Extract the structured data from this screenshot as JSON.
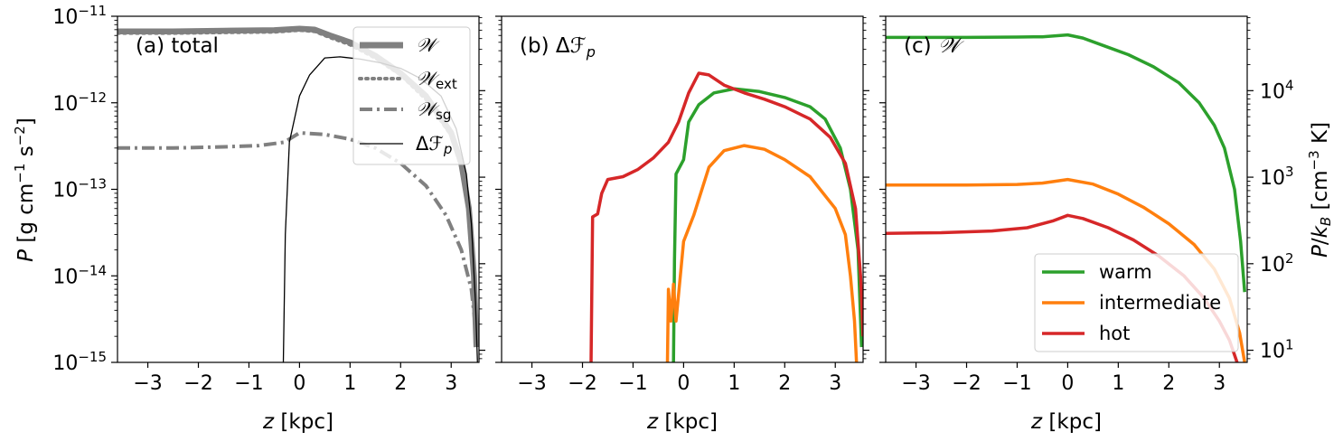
{
  "chart_data": [
    {
      "type": "line",
      "panel": "a",
      "title": "(a) total",
      "xlabel": "z [kpc]",
      "ylabel": "P [g cm⁻¹ s⁻²]",
      "yscale": "log",
      "xlim": [
        -3.6,
        3.55
      ],
      "ylim": [
        1e-15,
        1e-11
      ],
      "xticks": [
        -3,
        -2,
        -1,
        0,
        1,
        2,
        3
      ],
      "xtick_labels": [
        "−3",
        "−2",
        "−1",
        "0",
        "1",
        "2",
        "3"
      ],
      "yticks": [
        1e-15,
        1e-14,
        1e-13,
        1e-12,
        1e-11
      ],
      "ytick_labels": [
        {
          "base": "10",
          "exp": "−15"
        },
        {
          "base": "10",
          "exp": "−14"
        },
        {
          "base": "10",
          "exp": "−13"
        },
        {
          "base": "10",
          "exp": "−12"
        },
        {
          "base": "10",
          "exp": "−11"
        }
      ],
      "legend_position": "upper right",
      "series": [
        {
          "name": "𝒲",
          "color": "#808080",
          "style": "solid-thick",
          "points": [
            [
              -3.6,
              6.7e-12
            ],
            [
              -2.5,
              6.7e-12
            ],
            [
              -1.5,
              6.8e-12
            ],
            [
              -0.5,
              6.9e-12
            ],
            [
              0,
              7.2e-12
            ],
            [
              0.3,
              7e-12
            ],
            [
              0.6,
              6e-12
            ],
            [
              1.0,
              5e-12
            ],
            [
              1.5,
              3.5e-12
            ],
            [
              2.0,
              2.2e-12
            ],
            [
              2.5,
              1.2e-12
            ],
            [
              3.0,
              4.5e-13
            ],
            [
              3.2,
              2e-13
            ],
            [
              3.35,
              6e-14
            ],
            [
              3.45,
              1e-14
            ],
            [
              3.5,
              1.5e-15
            ]
          ]
        },
        {
          "name": "𝒲ext",
          "color": "#808080",
          "style": "dotted",
          "points": [
            [
              -3.6,
              6.4e-12
            ],
            [
              -2.5,
              6.4e-12
            ],
            [
              -1.5,
              6.5e-12
            ],
            [
              -0.5,
              6.6e-12
            ],
            [
              0,
              6.9e-12
            ],
            [
              0.3,
              6.7e-12
            ],
            [
              0.6,
              5.7e-12
            ],
            [
              1.0,
              4.7e-12
            ],
            [
              1.5,
              3.3e-12
            ],
            [
              2.0,
              2.1e-12
            ],
            [
              2.5,
              1.1e-12
            ],
            [
              3.0,
              4.2e-13
            ],
            [
              3.2,
              1.8e-13
            ],
            [
              3.35,
              5.5e-14
            ],
            [
              3.45,
              9e-15
            ],
            [
              3.5,
              1.5e-15
            ]
          ]
        },
        {
          "name": "𝒲sg",
          "color": "#808080",
          "style": "dashdot",
          "points": [
            [
              -3.6,
              3e-13
            ],
            [
              -2.5,
              3e-13
            ],
            [
              -1.5,
              3.1e-13
            ],
            [
              -0.8,
              3.2e-13
            ],
            [
              -0.3,
              3.5e-13
            ],
            [
              0,
              4.5e-13
            ],
            [
              0.5,
              4.3e-13
            ],
            [
              1.0,
              3.8e-13
            ],
            [
              1.5,
              3e-13
            ],
            [
              2.0,
              2e-13
            ],
            [
              2.5,
              1.1e-13
            ],
            [
              2.9,
              5e-14
            ],
            [
              3.2,
              2e-14
            ],
            [
              3.4,
              7e-15
            ],
            [
              3.5,
              2e-15
            ]
          ]
        },
        {
          "name": "Δℱp",
          "color": "#000000",
          "style": "solid-thin",
          "points": [
            [
              -0.32,
              1e-15
            ],
            [
              -0.28,
              3e-14
            ],
            [
              -0.2,
              3.5e-13
            ],
            [
              0,
              1.2e-12
            ],
            [
              0.2,
              2.1e-12
            ],
            [
              0.5,
              3.3e-12
            ],
            [
              0.8,
              3.4e-12
            ],
            [
              1.2,
              3.2e-12
            ],
            [
              1.6,
              2.9e-12
            ],
            [
              2.0,
              2.5e-12
            ],
            [
              2.4,
              1.9e-12
            ],
            [
              2.8,
              1.2e-12
            ],
            [
              3.1,
              5e-13
            ],
            [
              3.3,
              1.5e-13
            ],
            [
              3.4,
              4e-14
            ],
            [
              3.48,
              5e-15
            ],
            [
              3.52,
              1e-15
            ]
          ]
        }
      ]
    },
    {
      "type": "line",
      "panel": "b",
      "title": "(b) Δℱp",
      "xlabel": "z [kpc]",
      "yscale": "log",
      "xlim": [
        -3.6,
        3.55
      ],
      "ylim": [
        1e-15,
        1e-11
      ],
      "xticks": [
        -3,
        -2,
        -1,
        0,
        1,
        2,
        3
      ],
      "xtick_labels": [
        "−3",
        "−2",
        "−1",
        "0",
        "1",
        "2",
        "3"
      ],
      "series": [
        {
          "color": "#2ca02c",
          "points": [
            [
              -0.2,
              1e-15
            ],
            [
              -0.18,
              1.5e-14
            ],
            [
              -0.15,
              1.5e-13
            ],
            [
              0,
              2.2e-13
            ],
            [
              0.1,
              6e-13
            ],
            [
              0.3,
              9.5e-13
            ],
            [
              0.6,
              1.3e-12
            ],
            [
              1.0,
              1.45e-12
            ],
            [
              1.5,
              1.35e-12
            ],
            [
              2.0,
              1.15e-12
            ],
            [
              2.5,
              9e-13
            ],
            [
              2.8,
              6.5e-13
            ],
            [
              3.1,
              3e-13
            ],
            [
              3.3,
              1e-13
            ],
            [
              3.45,
              2e-14
            ],
            [
              3.52,
              1.5e-15
            ]
          ]
        },
        {
          "color": "#ff7f0e",
          "points": [
            [
              -0.32,
              1e-15
            ],
            [
              -0.3,
              7e-15
            ],
            [
              -0.25,
              3e-15
            ],
            [
              -0.2,
              8e-15
            ],
            [
              -0.15,
              3e-15
            ],
            [
              -0.08,
              8e-15
            ],
            [
              0,
              2.5e-14
            ],
            [
              0.2,
              5e-14
            ],
            [
              0.5,
              1.8e-13
            ],
            [
              0.8,
              2.8e-13
            ],
            [
              1.2,
              3.2e-13
            ],
            [
              1.6,
              2.9e-13
            ],
            [
              2.0,
              2.2e-13
            ],
            [
              2.5,
              1.4e-13
            ],
            [
              3.0,
              6e-14
            ],
            [
              3.2,
              3e-14
            ],
            [
              3.3,
              1e-14
            ],
            [
              3.38,
              3e-15
            ],
            [
              3.42,
              1e-15
            ]
          ]
        },
        {
          "color": "#d62728",
          "points": [
            [
              -1.83,
              1e-15
            ],
            [
              -1.8,
              4.8e-14
            ],
            [
              -1.7,
              5.2e-14
            ],
            [
              -1.62,
              9e-14
            ],
            [
              -1.5,
              1.3e-13
            ],
            [
              -1.2,
              1.4e-13
            ],
            [
              -0.9,
              1.7e-13
            ],
            [
              -0.6,
              2.3e-13
            ],
            [
              -0.3,
              3.5e-13
            ],
            [
              -0.1,
              6e-13
            ],
            [
              0.1,
              1.3e-12
            ],
            [
              0.3,
              2.2e-12
            ],
            [
              0.5,
              2.1e-12
            ],
            [
              0.8,
              1.6e-12
            ],
            [
              1.2,
              1.3e-12
            ],
            [
              1.6,
              1.1e-12
            ],
            [
              2.0,
              9e-13
            ],
            [
              2.5,
              6.5e-13
            ],
            [
              2.9,
              4e-13
            ],
            [
              3.2,
              2e-13
            ],
            [
              3.4,
              6e-14
            ],
            [
              3.5,
              1e-14
            ],
            [
              3.55,
              2e-15
            ]
          ]
        }
      ]
    },
    {
      "type": "line",
      "panel": "c",
      "title": "(c) 𝒲",
      "xlabel": "z [kpc]",
      "ylabel": "P/kB [cm⁻³ K]",
      "yscale": "log",
      "xlim": [
        -3.6,
        3.55
      ],
      "ylim": [
        1e-15,
        1e-11
      ],
      "xticks": [
        -3,
        -2,
        -1,
        0,
        1,
        2,
        3
      ],
      "xtick_labels": [
        "−3",
        "−2",
        "−1",
        "0",
        "1",
        "2",
        "3"
      ],
      "right_yticks": [
        10,
        100,
        1000,
        10000
      ],
      "right_ytick_labels": [
        {
          "base": "10",
          "exp": "1"
        },
        {
          "base": "10",
          "exp": "2"
        },
        {
          "base": "10",
          "exp": "3"
        },
        {
          "base": "10",
          "exp": "4"
        }
      ],
      "right_y_per_left": 7240000000000000.0,
      "legend_position": "lower right",
      "series": [
        {
          "name": "warm",
          "color": "#2ca02c",
          "points": [
            [
              -3.6,
              5.7e-12
            ],
            [
              -2,
              5.7e-12
            ],
            [
              -1,
              5.75e-12
            ],
            [
              -0.5,
              5.8e-12
            ],
            [
              0,
              6.1e-12
            ],
            [
              0.3,
              5.6e-12
            ],
            [
              0.7,
              4.6e-12
            ],
            [
              1.2,
              3.6e-12
            ],
            [
              1.7,
              2.6e-12
            ],
            [
              2.2,
              1.7e-12
            ],
            [
              2.6,
              1e-12
            ],
            [
              2.9,
              5.5e-13
            ],
            [
              3.1,
              3e-13
            ],
            [
              3.3,
              1e-13
            ],
            [
              3.42,
              2.5e-14
            ],
            [
              3.5,
              6.5e-15
            ]
          ]
        },
        {
          "name": "intermediate",
          "color": "#ff7f0e",
          "points": [
            [
              -3.6,
              1.12e-13
            ],
            [
              -2,
              1.12e-13
            ],
            [
              -1,
              1.14e-13
            ],
            [
              -0.5,
              1.18e-13
            ],
            [
              0,
              1.3e-13
            ],
            [
              0.5,
              1.15e-13
            ],
            [
              1.0,
              8.8e-14
            ],
            [
              1.5,
              6.2e-14
            ],
            [
              2.0,
              4e-14
            ],
            [
              2.5,
              2.3e-14
            ],
            [
              2.9,
              1.2e-14
            ],
            [
              3.2,
              5.5e-15
            ],
            [
              3.4,
              2.2e-15
            ],
            [
              3.5,
              1e-15
            ]
          ]
        },
        {
          "name": "hot",
          "color": "#d62728",
          "points": [
            [
              -3.6,
              3.1e-14
            ],
            [
              -2.5,
              3.15e-14
            ],
            [
              -1.5,
              3.3e-14
            ],
            [
              -0.8,
              3.6e-14
            ],
            [
              -0.3,
              4.3e-14
            ],
            [
              0,
              5e-14
            ],
            [
              0.3,
              4.6e-14
            ],
            [
              0.8,
              3.6e-14
            ],
            [
              1.3,
              2.6e-14
            ],
            [
              1.8,
              1.7e-14
            ],
            [
              2.3,
              1e-14
            ],
            [
              2.7,
              5.5e-15
            ],
            [
              3.0,
              3e-15
            ],
            [
              3.2,
              1.8e-15
            ],
            [
              3.35,
              1e-15
            ]
          ]
        }
      ]
    }
  ]
}
